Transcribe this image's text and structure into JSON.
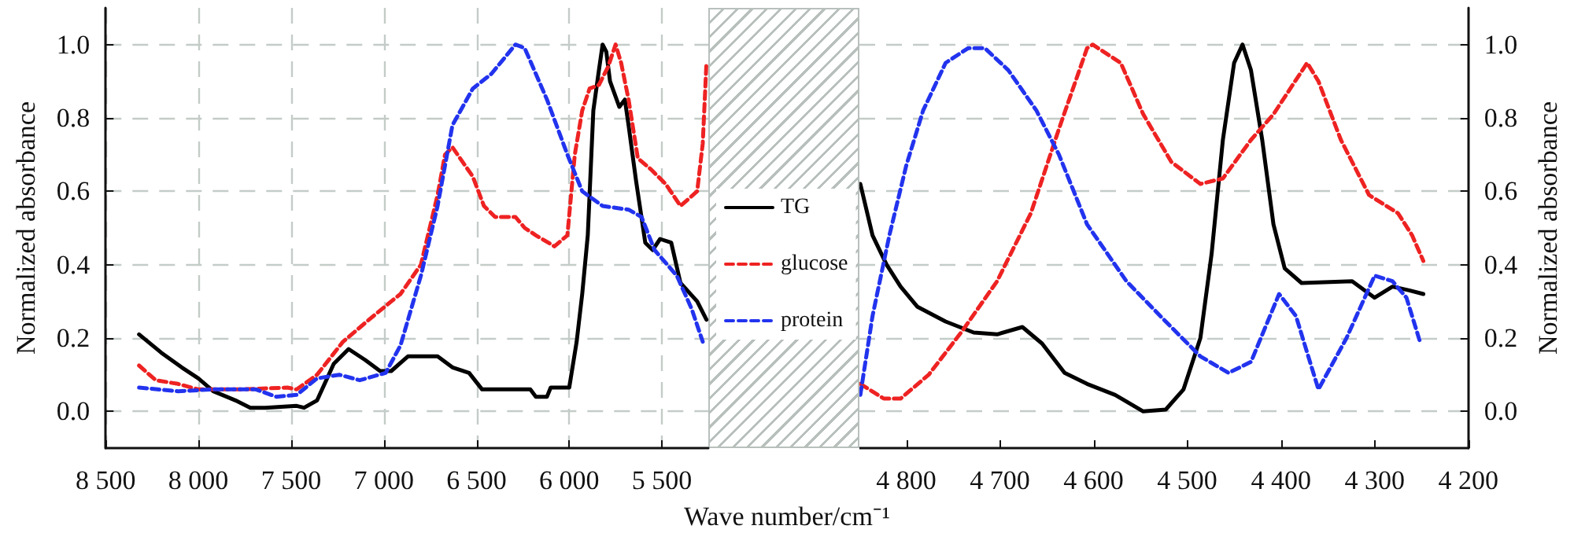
{
  "chart_data": [
    {
      "type": "line",
      "ylabel": "Normalized absorbance",
      "xlim": [
        8500,
        5250
      ],
      "xticks": [
        {
          "value": 8500,
          "label": "8 500"
        },
        {
          "value": 8000,
          "label": "8 000"
        },
        {
          "value": 7500,
          "label": "7 500"
        },
        {
          "value": 7000,
          "label": "7 000"
        },
        {
          "value": 6500,
          "label": "6 500"
        },
        {
          "value": 6000,
          "label": "6 000"
        },
        {
          "value": 5500,
          "label": "5 500"
        }
      ],
      "ylim": [
        -0.1,
        1.1
      ],
      "yticks": [
        {
          "value": 0,
          "label": "0.0"
        },
        {
          "value": 0.2,
          "label": "0.2"
        },
        {
          "value": 0.4,
          "label": "0.4"
        },
        {
          "value": 0.6,
          "label": "0.6"
        },
        {
          "value": 0.8,
          "label": "0.8"
        },
        {
          "value": 1,
          "label": "1.0"
        }
      ],
      "grid": true,
      "legend": "right",
      "marker": "none",
      "series": [
        {
          "name": "TG",
          "color": "#000000",
          "line_style": "solid",
          "x": [
            8320,
            8200,
            8090,
            8000,
            7920,
            7800,
            7720,
            7640,
            7470,
            7430,
            7360,
            7270,
            7190,
            7100,
            7020,
            6960,
            6870,
            6710,
            6630,
            6540,
            6470,
            6210,
            6180,
            6120,
            6100,
            6000,
            5960,
            5930,
            5900,
            5870,
            5840,
            5820,
            5800,
            5780,
            5730,
            5700,
            5680,
            5640,
            5590,
            5550,
            5510,
            5450,
            5400,
            5310,
            5260
          ],
          "values": [
            0.21,
            0.16,
            0.12,
            0.09,
            0.055,
            0.03,
            0.01,
            0.01,
            0.015,
            0.01,
            0.03,
            0.13,
            0.17,
            0.14,
            0.11,
            0.11,
            0.15,
            0.15,
            0.12,
            0.105,
            0.06,
            0.06,
            0.04,
            0.04,
            0.065,
            0.065,
            0.19,
            0.32,
            0.48,
            0.82,
            0.93,
            1.0,
            0.98,
            0.9,
            0.83,
            0.85,
            0.78,
            0.63,
            0.46,
            0.44,
            0.47,
            0.46,
            0.35,
            0.3,
            0.25
          ]
        },
        {
          "name": "glucose",
          "color": "#ee2222",
          "line_style": "dashed",
          "x": [
            8320,
            8230,
            8110,
            8000,
            7780,
            7520,
            7470,
            7360,
            7220,
            7080,
            6960,
            6910,
            6800,
            6710,
            6670,
            6630,
            6520,
            6460,
            6400,
            6290,
            6240,
            6180,
            6080,
            6010,
            5970,
            5930,
            5890,
            5840,
            5790,
            5750,
            5720,
            5680,
            5630,
            5560,
            5480,
            5400,
            5310,
            5280,
            5260
          ],
          "values": [
            0.125,
            0.085,
            0.075,
            0.06,
            0.06,
            0.065,
            0.06,
            0.1,
            0.19,
            0.25,
            0.3,
            0.32,
            0.4,
            0.59,
            0.7,
            0.72,
            0.64,
            0.56,
            0.53,
            0.53,
            0.5,
            0.48,
            0.45,
            0.48,
            0.7,
            0.82,
            0.88,
            0.89,
            0.94,
            1.0,
            0.95,
            0.85,
            0.69,
            0.66,
            0.62,
            0.56,
            0.6,
            0.73,
            0.95
          ]
        },
        {
          "name": "protein",
          "color": "#2233ee",
          "line_style": "dashed",
          "x": [
            8320,
            8110,
            7920,
            7690,
            7580,
            7470,
            7360,
            7240,
            7130,
            6990,
            6910,
            6800,
            6710,
            6630,
            6520,
            6420,
            6290,
            6240,
            6120,
            6010,
            5930,
            5820,
            5680,
            5610,
            5540,
            5420,
            5340,
            5280
          ],
          "values": [
            0.065,
            0.055,
            0.06,
            0.06,
            0.04,
            0.045,
            0.09,
            0.1,
            0.085,
            0.105,
            0.18,
            0.37,
            0.56,
            0.78,
            0.88,
            0.92,
            1.0,
            0.99,
            0.85,
            0.7,
            0.6,
            0.56,
            0.55,
            0.53,
            0.44,
            0.37,
            0.28,
            0.19
          ]
        }
      ]
    },
    {
      "type": "line",
      "xlabel": "Wave number/cm⁻¹",
      "ylabel": "Normalized absorbance",
      "xlim": [
        4850,
        4200
      ],
      "xticks": [
        {
          "value": 4800,
          "label": "4 800"
        },
        {
          "value": 4700,
          "label": "4 700"
        },
        {
          "value": 4600,
          "label": "4 600"
        },
        {
          "value": 4500,
          "label": "4 500"
        },
        {
          "value": 4400,
          "label": "4 400"
        },
        {
          "value": 4300,
          "label": "4 300"
        },
        {
          "value": 4200,
          "label": "4 200"
        }
      ],
      "ylim": [
        -0.1,
        1.1
      ],
      "yticks": [
        {
          "value": 0,
          "label": "0.0"
        },
        {
          "value": 0.2,
          "label": "0.2"
        },
        {
          "value": 0.4,
          "label": "0.4"
        },
        {
          "value": 0.6,
          "label": "0.6"
        },
        {
          "value": 0.8,
          "label": "0.8"
        },
        {
          "value": 1,
          "label": "1.0"
        }
      ],
      "grid": "y",
      "marker": "none",
      "series": [
        {
          "color": "#000000",
          "line_style": "solid",
          "x": [
            4849,
            4836,
            4821,
            4806,
            4788,
            4758,
            4728,
            4703,
            4676,
            4655,
            4631,
            4607,
            4577,
            4547,
            4523,
            4504,
            4486,
            4474,
            4462,
            4450,
            4441,
            4432,
            4420,
            4408,
            4396,
            4378,
            4324,
            4300,
            4281,
            4263,
            4248
          ],
          "values": [
            0.62,
            0.48,
            0.4,
            0.34,
            0.285,
            0.245,
            0.215,
            0.21,
            0.23,
            0.185,
            0.105,
            0.075,
            0.045,
            0.0,
            0.005,
            0.06,
            0.2,
            0.43,
            0.74,
            0.95,
            1.0,
            0.93,
            0.74,
            0.51,
            0.39,
            0.35,
            0.355,
            0.31,
            0.34,
            0.33,
            0.32
          ]
        },
        {
          "color": "#ee2222",
          "line_style": "dashed",
          "x": [
            4849,
            4824,
            4806,
            4776,
            4740,
            4703,
            4667,
            4637,
            4607,
            4601,
            4571,
            4547,
            4517,
            4486,
            4462,
            4432,
            4408,
            4372,
            4360,
            4336,
            4306,
            4275,
            4260,
            4248
          ],
          "values": [
            0.075,
            0.035,
            0.035,
            0.1,
            0.22,
            0.355,
            0.54,
            0.77,
            0.99,
            1.0,
            0.95,
            0.81,
            0.68,
            0.62,
            0.635,
            0.74,
            0.81,
            0.95,
            0.9,
            0.74,
            0.59,
            0.54,
            0.48,
            0.41
          ]
        },
        {
          "color": "#2233ee",
          "line_style": "dashed",
          "x": [
            4849,
            4836,
            4818,
            4800,
            4782,
            4758,
            4734,
            4716,
            4691,
            4661,
            4637,
            4607,
            4565,
            4523,
            4486,
            4456,
            4432,
            4402,
            4384,
            4360,
            4330,
            4300,
            4281,
            4266,
            4251
          ],
          "values": [
            0.045,
            0.26,
            0.48,
            0.67,
            0.82,
            0.95,
            0.99,
            0.99,
            0.93,
            0.82,
            0.7,
            0.51,
            0.355,
            0.245,
            0.15,
            0.105,
            0.135,
            0.32,
            0.26,
            0.06,
            0.2,
            0.37,
            0.355,
            0.31,
            0.185
          ]
        }
      ]
    }
  ]
}
